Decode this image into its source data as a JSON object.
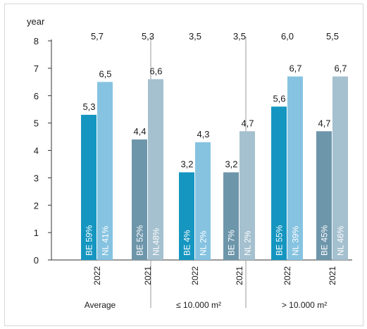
{
  "chart_data": {
    "type": "bar",
    "ylabel": "year",
    "ylim": [
      0,
      8
    ],
    "yticks": [
      0,
      1,
      2,
      3,
      4,
      5,
      6,
      7,
      8
    ],
    "grid": false,
    "groups": [
      {
        "label": "Average",
        "years": [
          {
            "year": "2022",
            "top_label": "5,7",
            "bars": [
              {
                "country": "BE",
                "value": 5.3,
                "value_label": "5,3",
                "share_label": "BE 59%",
                "color": "#1596c0"
              },
              {
                "country": "NL",
                "value": 6.5,
                "value_label": "6,5",
                "share_label": "NL 41%",
                "color": "#86c3e1"
              }
            ]
          },
          {
            "year": "2021",
            "top_label": "5,3",
            "bars": [
              {
                "country": "BE",
                "value": 4.4,
                "value_label": "4,4",
                "share_label": "BE 52%",
                "color": "#6e96ab"
              },
              {
                "country": "NL",
                "value": 6.6,
                "value_label": "6,6",
                "share_label": "NL48%",
                "color": "#a5c0cf"
              }
            ]
          }
        ]
      },
      {
        "label": "≤ 10.000 m²",
        "years": [
          {
            "year": "2022",
            "top_label": "3,5",
            "bars": [
              {
                "country": "BE",
                "value": 3.2,
                "value_label": "3,2",
                "share_label": "BE 4%",
                "color": "#1596c0"
              },
              {
                "country": "NL",
                "value": 4.3,
                "value_label": "4,3",
                "share_label": "NL 2%",
                "color": "#86c3e1"
              }
            ]
          },
          {
            "year": "2021",
            "top_label": "3,5",
            "bars": [
              {
                "country": "BE",
                "value": 3.2,
                "value_label": "3,2",
                "share_label": "BE 7%",
                "color": "#6e96ab"
              },
              {
                "country": "NL",
                "value": 4.7,
                "value_label": "4,7",
                "share_label": "NL 2%",
                "color": "#a5c0cf"
              }
            ]
          }
        ]
      },
      {
        "label": "> 10.000 m²",
        "years": [
          {
            "year": "2022",
            "top_label": "6,0",
            "bars": [
              {
                "country": "BE",
                "value": 5.6,
                "value_label": "5,6",
                "share_label": "BE 55%",
                "color": "#1596c0"
              },
              {
                "country": "NL",
                "value": 6.7,
                "value_label": "6,7",
                "share_label": "NL 39%",
                "color": "#86c3e1"
              }
            ]
          },
          {
            "year": "2021",
            "top_label": "5,5",
            "bars": [
              {
                "country": "BE",
                "value": 4.7,
                "value_label": "4,7",
                "share_label": "BE 45%",
                "color": "#6e96ab"
              },
              {
                "country": "NL",
                "value": 6.7,
                "value_label": "6,7",
                "share_label": "NL 46%",
                "color": "#a5c0cf"
              }
            ]
          }
        ]
      }
    ]
  }
}
